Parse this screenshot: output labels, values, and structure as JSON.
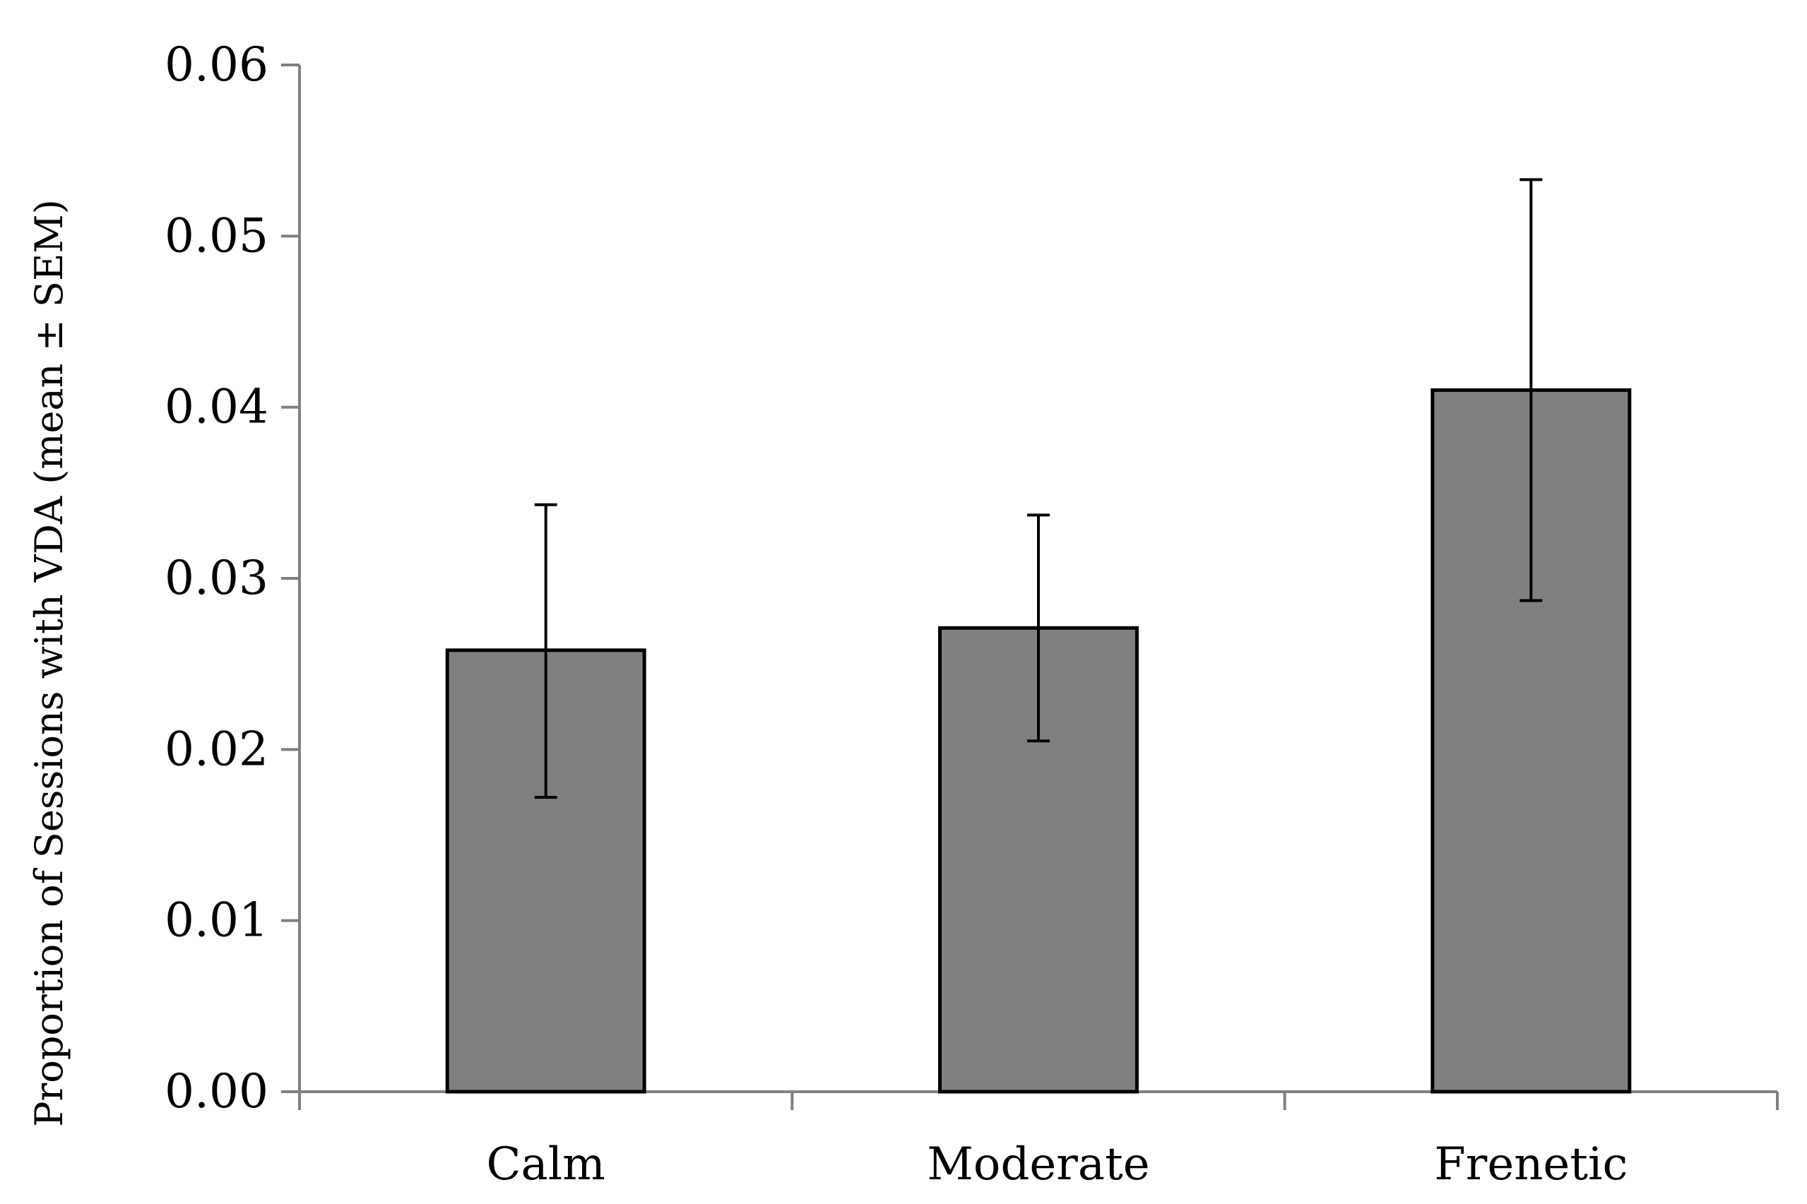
{
  "chart_data": {
    "type": "bar",
    "title": "",
    "xlabel": "",
    "ylabel": "Proportion of Sessions with VDA (mean ± SEM)",
    "categories": [
      "Calm",
      "Moderate",
      "Frenetic"
    ],
    "values": [
      0.0258,
      0.0271,
      0.041
    ],
    "error_upper": [
      0.0343,
      0.0337,
      0.0533
    ],
    "error_lower": [
      0.0172,
      0.0205,
      0.0287
    ],
    "ylim": [
      0,
      0.06
    ],
    "yticks": [
      "0.00",
      "0.01",
      "0.02",
      "0.03",
      "0.04",
      "0.05",
      "0.06"
    ],
    "grid": false,
    "legend": "none",
    "colors": {
      "bar_fill": "#808080",
      "bar_stroke": "#000000",
      "axis": "#808080",
      "error_bar": "#000000"
    }
  }
}
